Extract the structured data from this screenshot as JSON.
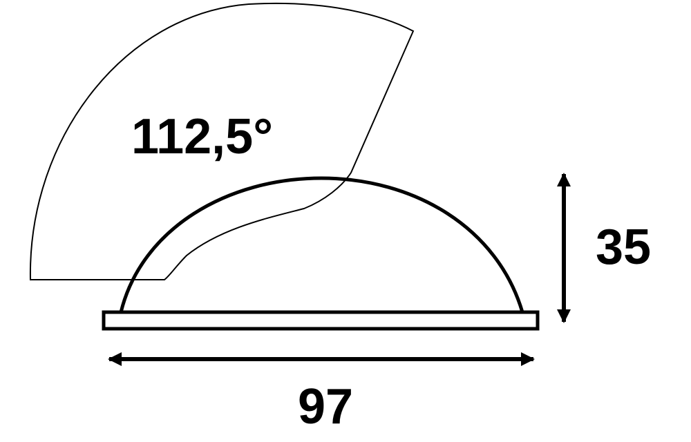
{
  "diagram": {
    "angle_label": "112,5°",
    "height_label": "35",
    "width_label": "97",
    "colors": {
      "stroke": "#000000",
      "background": "#ffffff"
    }
  }
}
